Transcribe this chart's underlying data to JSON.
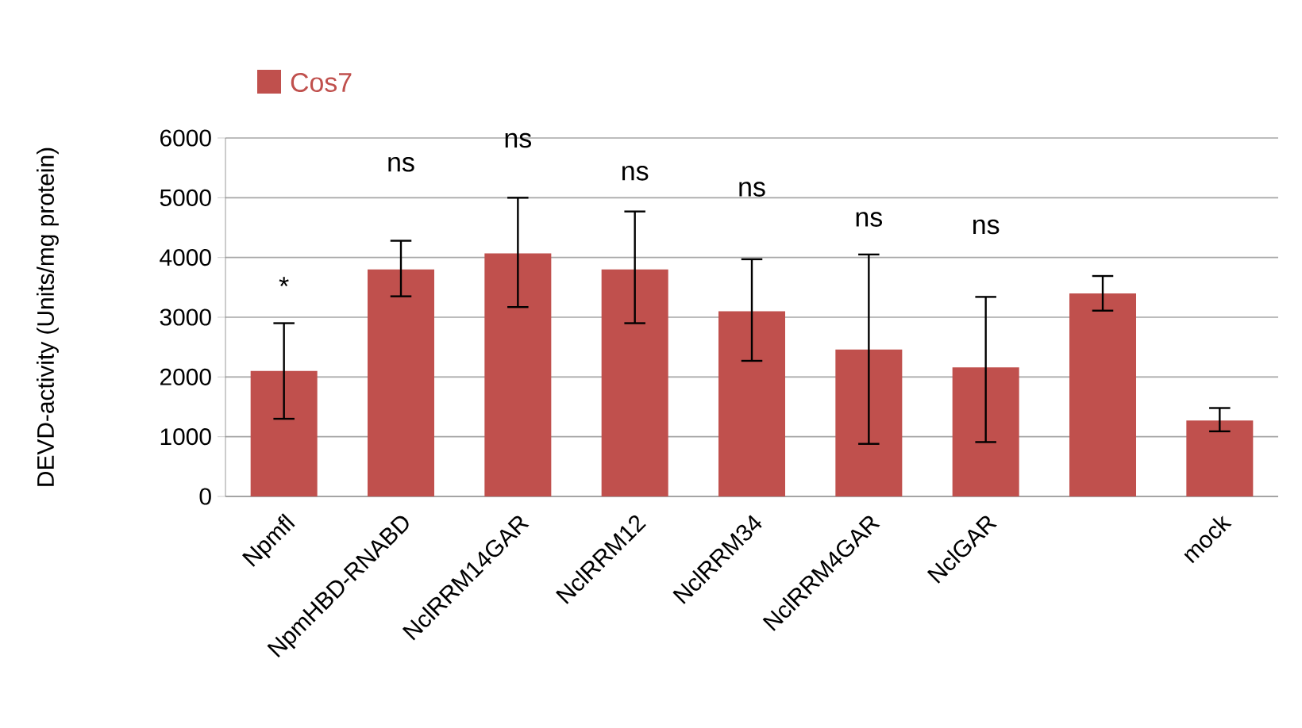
{
  "chart_data": {
    "type": "bar",
    "ylabel": "DEVD-activity (Units/mg protein)",
    "categories": [
      "Npmfl",
      "NpmHBD-RNABD",
      "NclRRM14GAR",
      "NclRRM12",
      "NclRRM34",
      "NclRRM4GAR",
      "NclGAR",
      null,
      "mock"
    ],
    "series": [
      {
        "name": "Cos7",
        "color": "#c0504d",
        "values": [
          2100,
          3800,
          4070,
          3800,
          3100,
          2460,
          2160,
          3400,
          1270
        ],
        "errors": [
          [
            1300,
            2900
          ],
          [
            3350,
            4280
          ],
          [
            3170,
            5000
          ],
          [
            2900,
            4770
          ],
          [
            2270,
            3970
          ],
          [
            880,
            4050
          ],
          [
            910,
            3340
          ],
          [
            3110,
            3690
          ],
          [
            1090,
            1480
          ]
        ]
      }
    ],
    "ylim": [
      0,
      6000
    ],
    "yticks": [
      0,
      1000,
      2000,
      3000,
      4000,
      5000,
      6000
    ],
    "grid": "y",
    "legend": "top left",
    "annotations": [
      "*",
      "ns",
      "ns",
      "ns",
      "ns",
      "ns",
      "ns"
    ]
  }
}
